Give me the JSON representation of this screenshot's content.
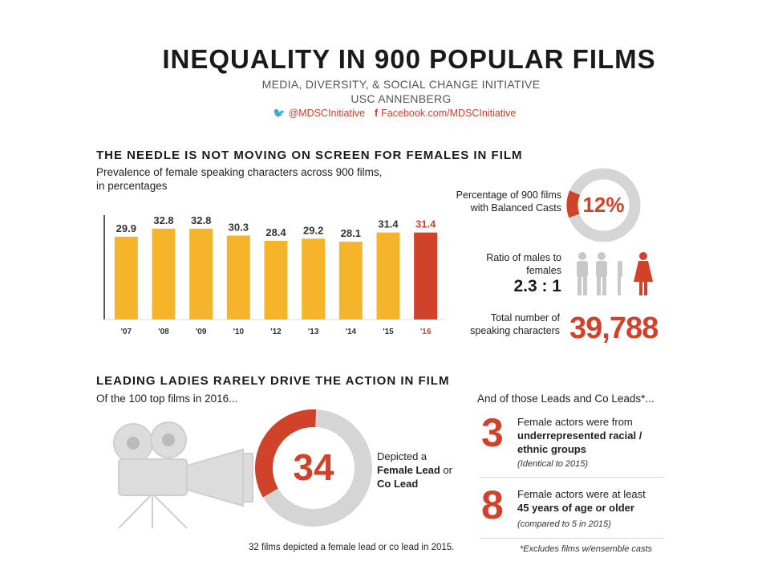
{
  "header": {
    "title": "INEQUALITY IN 900 POPULAR FILMS",
    "subtitle1": "MEDIA, DIVERSITY, & SOCIAL CHANGE INITIATIVE",
    "subtitle2": "USC ANNENBERG",
    "twitter": "@MDSCInitiative",
    "facebook": "Facebook.com/MDSCInitiative"
  },
  "section1": {
    "heading": "THE NEEDLE IS NOT MOVING ON SCREEN FOR FEMALES IN FILM",
    "chart_subtitle_line1": "Prevalence of female speaking characters across 900 films,",
    "chart_subtitle_line2": "in percentages"
  },
  "chart_data": {
    "type": "bar",
    "categories": [
      "'07",
      "'08",
      "'09",
      "'10",
      "'12",
      "'13",
      "'14",
      "'15",
      "'16"
    ],
    "values": [
      29.9,
      32.8,
      32.8,
      30.3,
      28.4,
      29.2,
      28.1,
      31.4,
      31.4
    ],
    "data_labels": [
      "29.9",
      "32.8",
      "32.8",
      "30.3",
      "28.4",
      "29.2",
      "28.1",
      "31.4",
      "31.4"
    ],
    "title": "Prevalence of female speaking characters across 900 films, in percentages",
    "ylim": [
      0,
      40
    ],
    "colors": {
      "bar": "#f6b42a",
      "highlight": "#d0422a"
    },
    "highlight_index": 8
  },
  "stats": {
    "balanced_label": "Percentage of 900 films with Balanced Casts",
    "balanced_value": "12%",
    "balanced_fraction": 0.12,
    "ratio_label": "Ratio of males to females",
    "ratio_value": "2.3 : 1",
    "total_label": "Total number of speaking characters",
    "total_value": "39,788"
  },
  "section2": {
    "heading": "LEADING LADIES RARELY DRIVE THE ACTION IN FILM",
    "intro": "Of the 100 top films in 2016...",
    "donut_value": "34",
    "donut_fraction": 0.34,
    "donut_caption_1": "Depicted a",
    "donut_caption_2": "Female Lead",
    "donut_caption_3": "or",
    "donut_caption_4": "Co Lead",
    "footnote": "32 films depicted a female lead or co lead in 2015.",
    "right_intro": "And of those Leads and Co Leads*...",
    "stat1_number": "3",
    "stat1_line1": "Female actors were from",
    "stat1_line2": "underrepresented racial /",
    "stat1_line3": "ethnic groups",
    "stat1_note": "(Identical to 2015)",
    "stat2_number": "8",
    "stat2_line1": "Female actors were at least",
    "stat2_line2": "45 years of age or older",
    "stat2_note": "(compared to 5 in 2015)",
    "excludes": "*Excludes films w/ensemble casts"
  },
  "colors": {
    "accent_red": "#d0422a",
    "bar_yellow": "#f6b42a",
    "gray": "#d5d5d5",
    "twitter_blue": "#3b8fd6"
  },
  "icons": [
    "twitter-bird-icon",
    "facebook-icon",
    "male-figure-icon",
    "female-figure-icon",
    "film-camera-icon"
  ]
}
